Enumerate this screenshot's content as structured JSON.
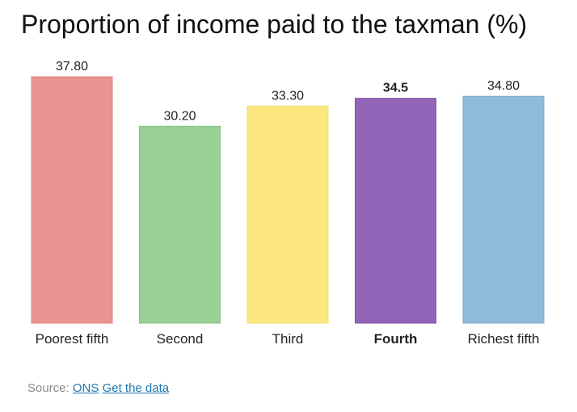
{
  "chart_data": {
    "type": "bar",
    "title": "Proportion of income paid to the taxman (%)",
    "categories": [
      "Poorest fifth",
      "Second",
      "Third",
      "Fourth",
      "Richest fifth"
    ],
    "values": [
      37.8,
      30.2,
      33.3,
      34.5,
      34.8
    ],
    "value_labels": [
      "37.80",
      "30.20",
      "33.30",
      "34.5",
      "34.80"
    ],
    "highlight": "Fourth",
    "colors": [
      "#ea9393",
      "#98d095",
      "#fde880",
      "#9265b8",
      "#8fbad9"
    ],
    "border_colors": [
      "#dd8585",
      "#86c083",
      "#f2dc70",
      "#7f54a6",
      "#7eaacb"
    ],
    "ylim": [
      0,
      37.8
    ],
    "grid": false,
    "xlabel": "",
    "ylabel": ""
  },
  "source": {
    "prefix": "Source:",
    "link1": "ONS",
    "link2": "Get the data"
  }
}
